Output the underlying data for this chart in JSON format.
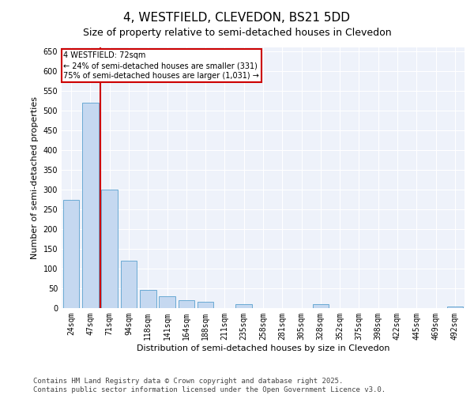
{
  "title": "4, WESTFIELD, CLEVEDON, BS21 5DD",
  "subtitle": "Size of property relative to semi-detached houses in Clevedon",
  "xlabel": "Distribution of semi-detached houses by size in Clevedon",
  "ylabel": "Number of semi-detached properties",
  "categories": [
    "24sqm",
    "47sqm",
    "71sqm",
    "94sqm",
    "118sqm",
    "141sqm",
    "164sqm",
    "188sqm",
    "211sqm",
    "235sqm",
    "258sqm",
    "281sqm",
    "305sqm",
    "328sqm",
    "352sqm",
    "375sqm",
    "398sqm",
    "422sqm",
    "445sqm",
    "469sqm",
    "492sqm"
  ],
  "values": [
    275,
    520,
    300,
    120,
    47,
    30,
    20,
    17,
    0,
    10,
    0,
    0,
    0,
    10,
    0,
    0,
    0,
    0,
    0,
    0,
    5
  ],
  "bar_color": "#c5d8f0",
  "bar_edge_color": "#6aaad4",
  "vline_x_index": 2,
  "vline_color": "#cc0000",
  "annotation_text": "4 WESTFIELD: 72sqm\n← 24% of semi-detached houses are smaller (331)\n75% of semi-detached houses are larger (1,031) →",
  "annotation_box_color": "#cc0000",
  "ylim": [
    0,
    660
  ],
  "yticks": [
    0,
    50,
    100,
    150,
    200,
    250,
    300,
    350,
    400,
    450,
    500,
    550,
    600,
    650
  ],
  "plot_bg_color": "#eef2fa",
  "footer": "Contains HM Land Registry data © Crown copyright and database right 2025.\nContains public sector information licensed under the Open Government Licence v3.0.",
  "title_fontsize": 11,
  "subtitle_fontsize": 9,
  "axis_label_fontsize": 8,
  "tick_fontsize": 7,
  "footer_fontsize": 6.5
}
